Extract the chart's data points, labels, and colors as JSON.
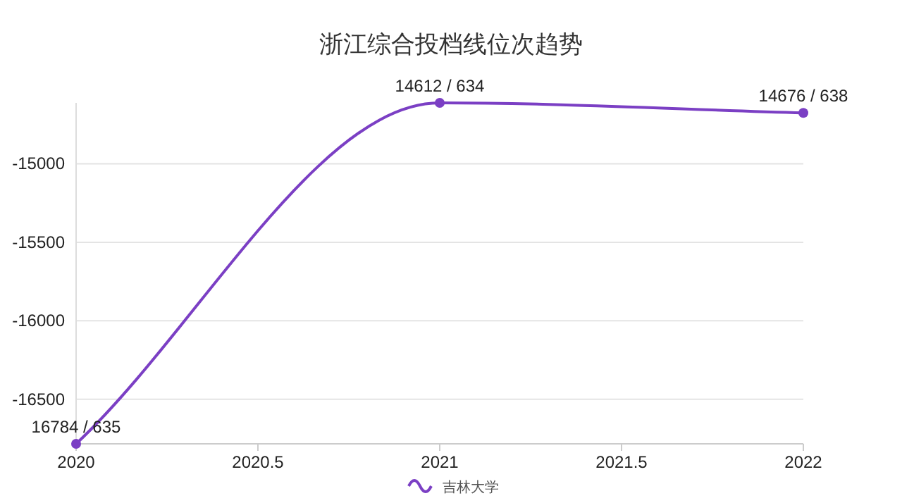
{
  "chart_data": {
    "type": "line",
    "title": "浙江综合投档线位次趋势",
    "x": [
      2020,
      2021,
      2022
    ],
    "series": [
      {
        "name": "吉林大学",
        "color": "#7b3fc4",
        "values": [
          -16784,
          -14612,
          -14676
        ]
      }
    ],
    "annotations": [
      {
        "text": "16784 / 635",
        "x": 2020,
        "y": -16784
      },
      {
        "text": "14612 / 634",
        "x": 2021,
        "y": -14612
      },
      {
        "text": "14676 / 638",
        "x": 2022,
        "y": -14676
      }
    ],
    "xlim": [
      2020,
      2022
    ],
    "xticks": [
      2020,
      2020.5,
      2021,
      2021.5,
      2022
    ],
    "ylim": [
      -16784,
      -14612
    ],
    "yticks": [
      -15000,
      -15500,
      -16000,
      -16500
    ],
    "grid": "y",
    "legend": "bottom",
    "marker": "circle",
    "line_style": "solid"
  }
}
